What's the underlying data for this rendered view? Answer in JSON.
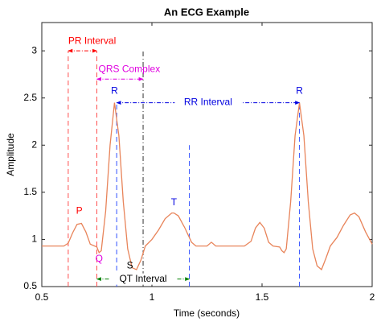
{
  "chart_data": {
    "type": "line",
    "title": "An ECG Example",
    "xlabel": "Time (seconds)",
    "ylabel": "Amplitude",
    "color": "#e8845a",
    "xlim": [
      0.5,
      2.0
    ],
    "xticks": [
      0.5,
      1,
      1.5,
      2
    ],
    "ylim": [
      0.5,
      3.3
    ],
    "yticks": [
      0.5,
      1,
      1.5,
      2,
      2.5,
      3
    ],
    "x": [
      0.5,
      0.6,
      0.62,
      0.64,
      0.66,
      0.68,
      0.7,
      0.72,
      0.74,
      0.75,
      0.76,
      0.77,
      0.79,
      0.81,
      0.83,
      0.85,
      0.87,
      0.89,
      0.91,
      0.93,
      0.95,
      0.97,
      1.0,
      1.03,
      1.06,
      1.09,
      1.1,
      1.12,
      1.15,
      1.18,
      1.2,
      1.25,
      1.27,
      1.29,
      1.35,
      1.42,
      1.45,
      1.47,
      1.49,
      1.51,
      1.53,
      1.55,
      1.58,
      1.59,
      1.6,
      1.61,
      1.63,
      1.65,
      1.67,
      1.69,
      1.71,
      1.73,
      1.75,
      1.77,
      1.79,
      1.81,
      1.84,
      1.87,
      1.9,
      1.92,
      1.94,
      1.97,
      2.0
    ],
    "values": [
      0.93,
      0.93,
      0.96,
      1.07,
      1.16,
      1.17,
      1.08,
      0.95,
      0.93,
      0.92,
      0.86,
      0.88,
      1.3,
      2.0,
      2.45,
      2.1,
      1.4,
      0.9,
      0.7,
      0.68,
      0.78,
      0.93,
      1.0,
      1.1,
      1.22,
      1.28,
      1.28,
      1.25,
      1.12,
      0.97,
      0.93,
      0.93,
      0.97,
      0.93,
      0.93,
      0.93,
      0.98,
      1.12,
      1.18,
      1.12,
      0.97,
      0.93,
      0.92,
      0.88,
      0.86,
      0.9,
      1.4,
      2.1,
      2.45,
      2.1,
      1.4,
      0.9,
      0.72,
      0.68,
      0.8,
      0.93,
      1.02,
      1.15,
      1.26,
      1.28,
      1.24,
      1.08,
      0.95
    ],
    "vlines": [
      {
        "x": 0.62,
        "y": [
          0.5,
          3.0
        ],
        "color": "#ff5050",
        "dash": "6,4"
      },
      {
        "x": 0.75,
        "y": [
          0.5,
          3.0
        ],
        "color": "#ff5050",
        "dash": "6,4"
      },
      {
        "x": 0.96,
        "y": [
          0.5,
          3.0
        ],
        "color": "#333333",
        "dash": "6,3,1,3"
      },
      {
        "x": 0.84,
        "y": [
          0.5,
          2.45
        ],
        "color": "#3050ff",
        "dash": "6,4"
      },
      {
        "x": 1.17,
        "y": [
          0.5,
          2.0
        ],
        "color": "#3050ff",
        "dash": "6,4"
      },
      {
        "x": 1.67,
        "y": [
          0.5,
          2.45
        ],
        "color": "#3050ff",
        "dash": "6,4"
      }
    ],
    "spans": [
      {
        "label": "PR Interval",
        "x": [
          0.62,
          0.75
        ],
        "y": 3.0,
        "color": "#ff0000"
      },
      {
        "label": "QRS Complex",
        "x": [
          0.75,
          0.96
        ],
        "y": 2.7,
        "color": "#e000e0"
      },
      {
        "label": "RR Interval",
        "x": [
          0.84,
          1.67
        ],
        "y": 2.45,
        "color": "#0000e0"
      },
      {
        "label": "QT Interval",
        "x": [
          0.75,
          1.17
        ],
        "y": 0.58,
        "color": "#008000"
      }
    ],
    "point_labels": [
      {
        "text": "P",
        "x": 0.67,
        "y": 1.3,
        "color": "#ff0000"
      },
      {
        "text": "Q",
        "x": 0.76,
        "y": 0.79,
        "color": "#e000e0"
      },
      {
        "text": "R",
        "x": 0.83,
        "y": 2.57,
        "color": "#0000e0"
      },
      {
        "text": "S",
        "x": 0.9,
        "y": 0.72,
        "color": "#000000"
      },
      {
        "text": "T",
        "x": 1.1,
        "y": 1.39,
        "color": "#0000e0"
      },
      {
        "text": "R",
        "x": 1.67,
        "y": 2.57,
        "color": "#0000e0"
      }
    ]
  }
}
